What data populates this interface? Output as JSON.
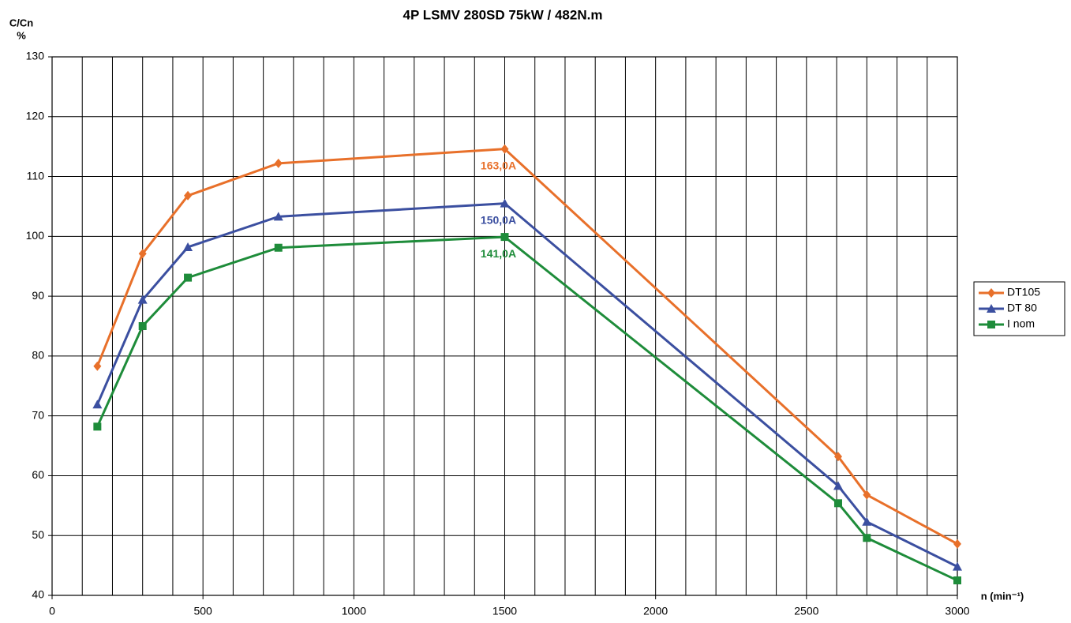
{
  "chart_data": {
    "type": "line",
    "title": "4P LSMV 280SD 75kW / 482N.m",
    "ylabel": [
      "C/Cn",
      "%"
    ],
    "xlabel": "n (min⁻¹)",
    "xlim": [
      0,
      3000
    ],
    "xticks": [
      0,
      500,
      1000,
      1500,
      2000,
      2500,
      3000
    ],
    "xgrid": [
      0,
      100,
      200,
      300,
      400,
      500,
      600,
      700,
      800,
      900,
      1000,
      1100,
      1200,
      1300,
      1400,
      1500,
      1600,
      1700,
      1800,
      1900,
      2000,
      2100,
      2200,
      2300,
      2400,
      2500,
      2600,
      2700,
      2800,
      2900,
      3000
    ],
    "ylim": [
      40,
      130
    ],
    "yticks": [
      40,
      50,
      60,
      70,
      80,
      90,
      100,
      110,
      120,
      130
    ],
    "grid": true,
    "legend": "right",
    "x": [
      150,
      300,
      450,
      750,
      1500,
      2605,
      2700,
      3000
    ],
    "series": [
      {
        "name": "DT105",
        "color": "#e8702a",
        "marker": "diamond",
        "peak_label": "163,0A",
        "values": [
          78.3,
          97.1,
          106.8,
          112.2,
          114.6,
          63.2,
          56.8,
          48.6
        ]
      },
      {
        "name": "DT 80",
        "color": "#3b4fa0",
        "marker": "triangle",
        "peak_label": "150,0A",
        "values": [
          71.9,
          89.4,
          98.2,
          103.3,
          105.5,
          58.3,
          52.3,
          44.8
        ]
      },
      {
        "name": "I nom",
        "color": "#1e8c3a",
        "marker": "square",
        "peak_label": "141,0A",
        "values": [
          68.2,
          85.0,
          93.1,
          98.1,
          99.9,
          55.4,
          49.6,
          42.5
        ]
      }
    ]
  }
}
